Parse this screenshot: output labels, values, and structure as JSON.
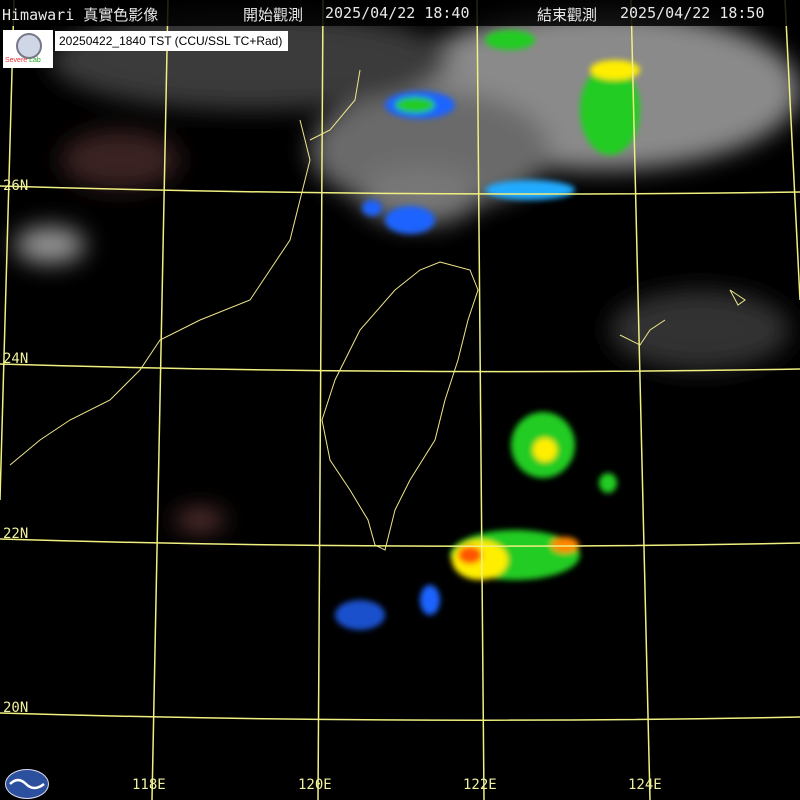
{
  "header": {
    "title": "Himawari 真實色影像",
    "start_label": "開始觀測",
    "start_time": "2025/04/22 18:40",
    "end_label": "結束觀測",
    "end_time": "2025/04/22 18:50"
  },
  "product_label": "20250422_1840 TST (CCU/SSL TC+Rad)",
  "logos": {
    "lab_logo_text": "Severe Storm Lab",
    "agency_logo": "cwa-logo"
  },
  "grid": {
    "latitudes": [
      "26N",
      "24N",
      "22N",
      "20N"
    ],
    "longitudes": [
      "118E",
      "120E",
      "122E",
      "124E"
    ],
    "line_color": "#f0f080"
  },
  "colors": {
    "coastline": "#f0e68c",
    "radar_low": "#1e64ff",
    "radar_mid": "#22cc22",
    "radar_high": "#ffee00",
    "radar_peak": "#ff3300"
  }
}
